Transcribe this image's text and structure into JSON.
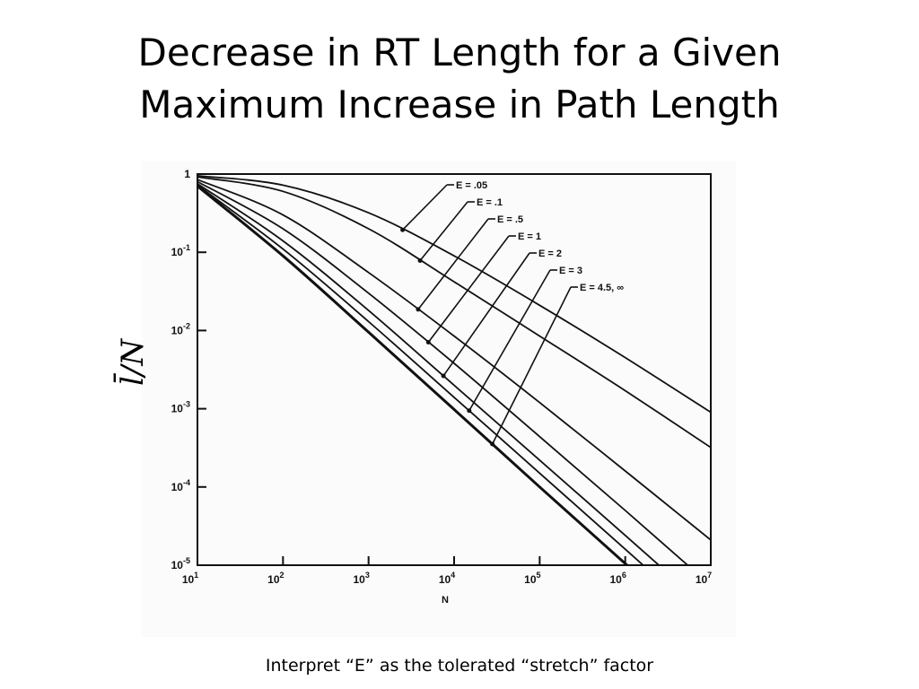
{
  "slide": {
    "title_line1": "Decrease in RT Length for a Given",
    "title_line2": "Maximum Increase in Path Length",
    "caption": "Interpret “E” as the tolerated “stretch” factor"
  },
  "chart_data": {
    "type": "line",
    "xlabel": "N",
    "ylabel": "l̄/N",
    "x_scale": "log",
    "y_scale": "log",
    "xlim": [
      10,
      10000000
    ],
    "ylim": [
      1e-05,
      1
    ],
    "x_ticks": [
      {
        "value": 10,
        "base": "10",
        "exp": "1"
      },
      {
        "value": 100,
        "base": "10",
        "exp": "2"
      },
      {
        "value": 1000,
        "base": "10",
        "exp": "3"
      },
      {
        "value": 10000,
        "base": "10",
        "exp": "4"
      },
      {
        "value": 100000,
        "base": "10",
        "exp": "5"
      },
      {
        "value": 1000000,
        "base": "10",
        "exp": "6"
      },
      {
        "value": 10000000,
        "base": "10",
        "exp": "7"
      }
    ],
    "y_ticks": [
      {
        "value": 1,
        "base": "1",
        "exp": ""
      },
      {
        "value": 0.1,
        "base": "10",
        "exp": "-1"
      },
      {
        "value": 0.01,
        "base": "10",
        "exp": "-2"
      },
      {
        "value": 0.001,
        "base": "10",
        "exp": "-3"
      },
      {
        "value": 0.0001,
        "base": "10",
        "exp": "-4"
      },
      {
        "value": 1e-05,
        "base": "10",
        "exp": "-5"
      }
    ],
    "grid": false,
    "series": [
      {
        "name": "E = .05",
        "x": [
          10,
          100,
          1000,
          10000,
          100000,
          1000000,
          10000000
        ],
        "y": [
          0.95,
          0.72,
          0.32,
          0.09,
          0.021,
          0.0045,
          0.0009
        ]
      },
      {
        "name": "E = .1",
        "x": [
          10,
          100,
          1000,
          10000,
          100000,
          1000000,
          10000000
        ],
        "y": [
          0.92,
          0.6,
          0.2,
          0.042,
          0.0085,
          0.0017,
          0.00032
        ]
      },
      {
        "name": "E = .5",
        "x": [
          10,
          100,
          1000,
          10000,
          100000,
          1000000,
          10000000
        ],
        "y": [
          0.85,
          0.3,
          0.055,
          0.0085,
          0.0012,
          0.00016,
          2.1e-05
        ]
      },
      {
        "name": "E = 1",
        "x": [
          10,
          100,
          1000,
          10000,
          100000,
          1000000,
          10000000
        ],
        "y": [
          0.8,
          0.2,
          0.03,
          0.0038,
          0.00044,
          5e-05,
          5.5e-06
        ]
      },
      {
        "name": "E = 2",
        "x": [
          10,
          100,
          1000,
          10000,
          100000,
          1000000,
          10000000
        ],
        "y": [
          0.75,
          0.14,
          0.018,
          0.002,
          0.00022,
          2.4e-05,
          2.6e-06
        ]
      },
      {
        "name": "E = 3",
        "x": [
          10,
          100,
          1000,
          10000,
          100000,
          1000000,
          10000000
        ],
        "y": [
          0.72,
          0.11,
          0.013,
          0.0014,
          0.00015,
          1.6e-05,
          1.7e-06
        ]
      },
      {
        "name": "E = 4.5, ∞",
        "x": [
          10,
          100,
          1000,
          10000,
          100000,
          1000000,
          10000000
        ],
        "y": [
          0.7,
          0.09,
          0.0095,
          0.00098,
          0.0001,
          1.05e-05,
          1.1e-06
        ]
      }
    ],
    "annotations": [
      {
        "text": "E = .05",
        "series": 0,
        "x": 2500
      },
      {
        "text": "E = .1",
        "series": 1,
        "x": 4000
      },
      {
        "text": "E = .5",
        "series": 2,
        "x": 3800
      },
      {
        "text": "E = 1",
        "series": 3,
        "x": 5000
      },
      {
        "text": "E = 2",
        "series": 4,
        "x": 7500
      },
      {
        "text": "E = 3",
        "series": 5,
        "x": 15000
      },
      {
        "text": "E = 4.5, ∞",
        "series": 6,
        "x": 28000
      }
    ]
  }
}
